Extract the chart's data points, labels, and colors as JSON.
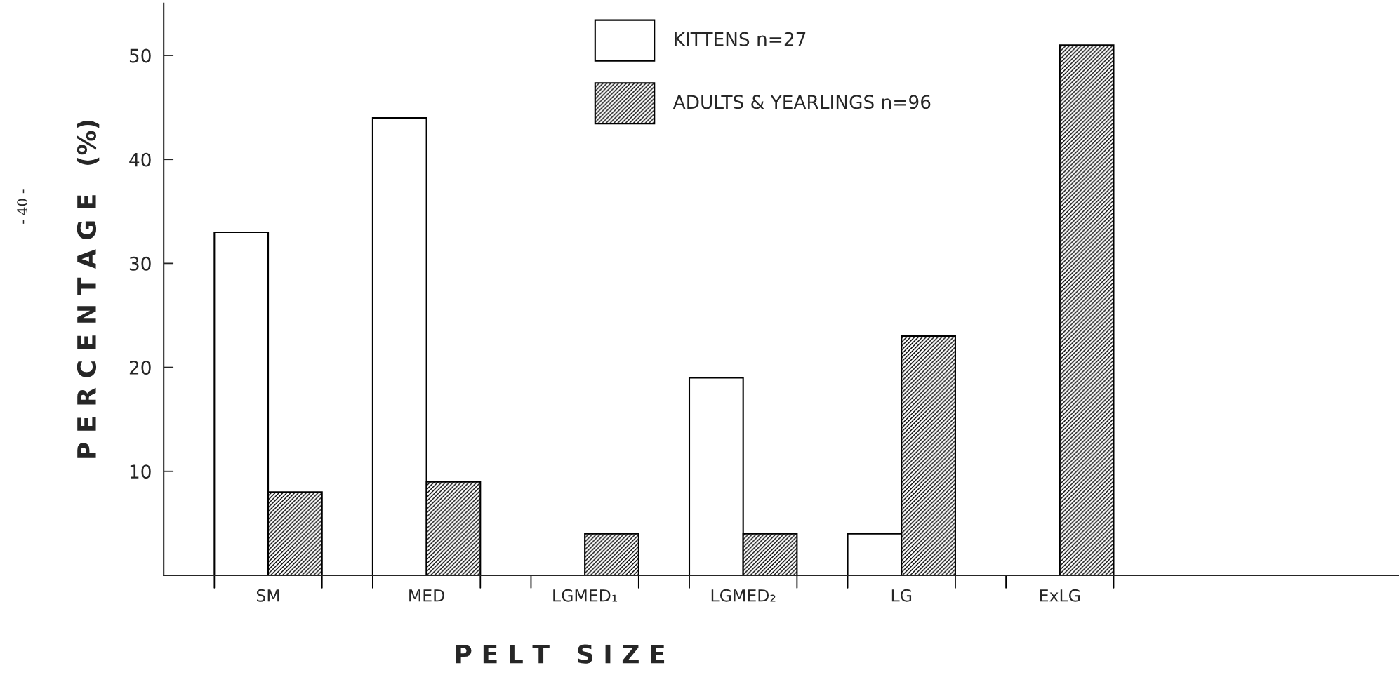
{
  "chart_data": {
    "type": "bar",
    "categories": [
      "SM",
      "MED",
      "LGMED₁",
      "LGMED₂",
      "LG",
      "ExLG"
    ],
    "series": [
      {
        "name": "KITTENS n=27",
        "color": "#ffffff",
        "values": [
          33,
          44,
          null,
          19,
          4,
          null
        ]
      },
      {
        "name": "ADULTS & YEARLINGS n=96",
        "color": "#000000",
        "values": [
          8,
          9,
          4,
          4,
          23,
          51
        ]
      }
    ],
    "xlabel": "P E L T   S I Z E",
    "ylabel": "P E R C E N T A G E   (%)",
    "ylim": [
      0,
      55
    ],
    "yticks": [
      10,
      20,
      30,
      40,
      50
    ],
    "annotations": [
      "- 40 -"
    ],
    "legend": "top",
    "grid": false
  }
}
